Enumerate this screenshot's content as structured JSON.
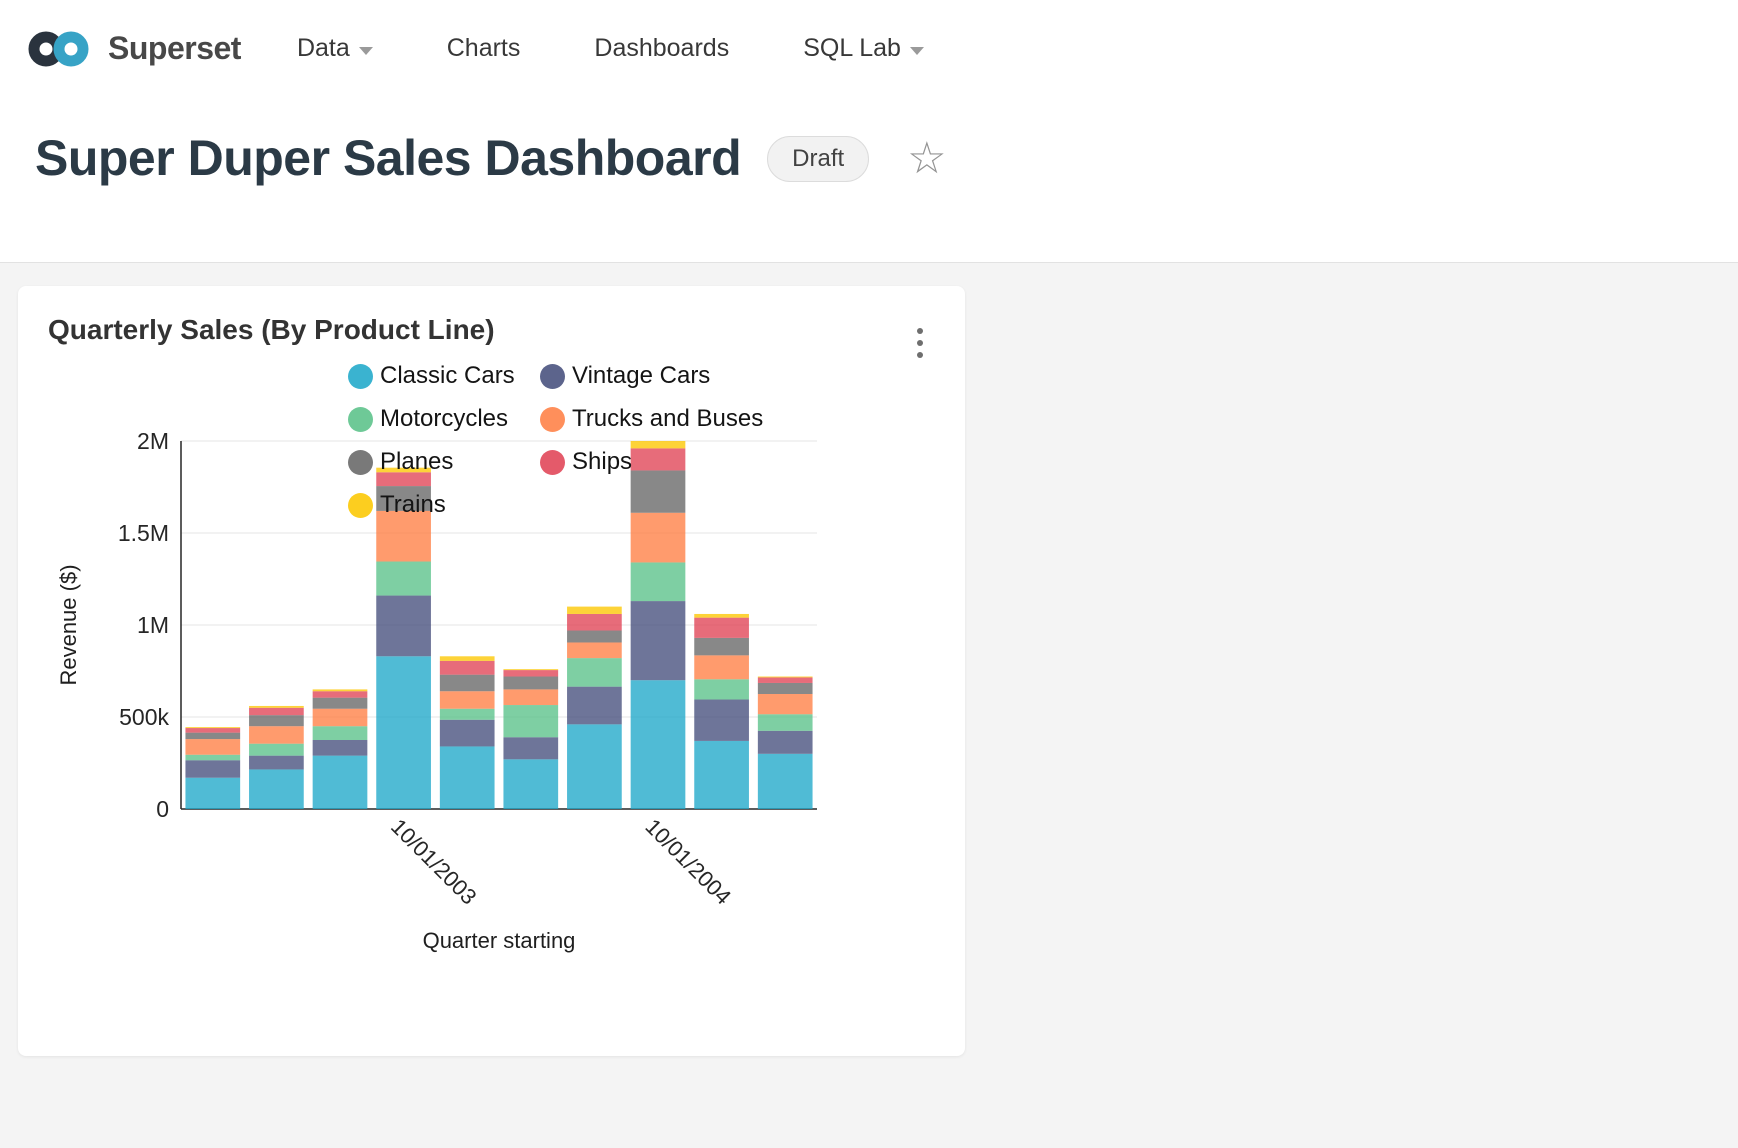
{
  "nav": {
    "brand": "Superset",
    "items": [
      {
        "label": "Data",
        "caret": true
      },
      {
        "label": "Charts",
        "caret": false
      },
      {
        "label": "Dashboards",
        "caret": false
      },
      {
        "label": "SQL Lab",
        "caret": true
      }
    ]
  },
  "header": {
    "title": "Super Duper Sales Dashboard",
    "badge": "Draft"
  },
  "card": {
    "title": "Quarterly Sales (By Product Line)"
  },
  "colors": {
    "brand_dark": "#2a333e",
    "brand_cyan": "#37a3c6",
    "grid": "#e4e4e4",
    "axis": "#262626"
  },
  "chart_data": {
    "type": "bar",
    "stacked": true,
    "title": "Quarterly Sales (By Product Line)",
    "xlabel": "Quarter starting",
    "ylabel": "Revenue ($)",
    "ylim": [
      0,
      2000000
    ],
    "grid": true,
    "legend_position": "top-center",
    "yticks": [
      {
        "v": 0,
        "label": "0"
      },
      {
        "v": 500000,
        "label": "500k"
      },
      {
        "v": 1000000,
        "label": "1M"
      },
      {
        "v": 1500000,
        "label": "1.5M"
      },
      {
        "v": 2000000,
        "label": "2M"
      }
    ],
    "categories": [
      "",
      "",
      "",
      "10/01/2003",
      "",
      "",
      "",
      "10/01/2004",
      "",
      ""
    ],
    "series": [
      {
        "name": "Classic Cars",
        "color": "#1FA8C9",
        "values": [
          170000,
          215000,
          290000,
          830000,
          340000,
          270000,
          460000,
          700000,
          370000,
          300000
        ]
      },
      {
        "name": "Vintage Cars",
        "color": "#454E7C",
        "values": [
          95000,
          75000,
          85000,
          330000,
          145000,
          120000,
          205000,
          430000,
          225000,
          125000
        ]
      },
      {
        "name": "Motorcycles",
        "color": "#5AC189",
        "values": [
          30000,
          65000,
          75000,
          185000,
          60000,
          175000,
          155000,
          210000,
          110000,
          90000
        ]
      },
      {
        "name": "Trucks and Buses",
        "color": "#FF7F44",
        "values": [
          85000,
          95000,
          95000,
          275000,
          95000,
          85000,
          85000,
          270000,
          130000,
          110000
        ]
      },
      {
        "name": "Planes",
        "color": "#666666",
        "values": [
          35000,
          60000,
          60000,
          135000,
          90000,
          70000,
          65000,
          230000,
          95000,
          60000
        ]
      },
      {
        "name": "Ships",
        "color": "#E04355",
        "values": [
          25000,
          40000,
          35000,
          75000,
          75000,
          35000,
          90000,
          120000,
          110000,
          30000
        ]
      },
      {
        "name": "Trains",
        "color": "#FCC700",
        "values": [
          5000,
          10000,
          10000,
          25000,
          25000,
          5000,
          40000,
          40000,
          20000,
          5000
        ]
      }
    ]
  }
}
